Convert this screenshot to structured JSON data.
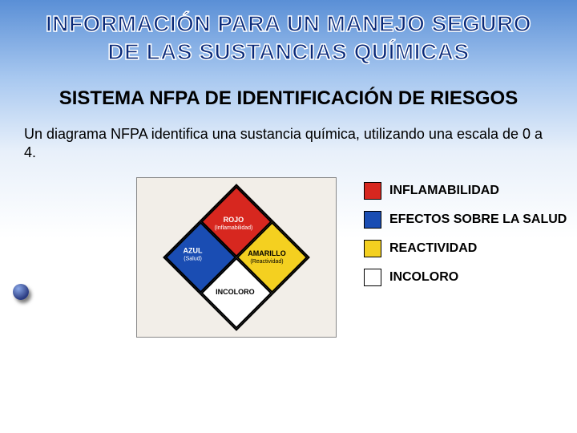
{
  "title": {
    "line1": "INFORMACIÓN PARA UN MANEJO SEGURO",
    "line2": "DE LAS SUSTANCIAS QUÍMICAS"
  },
  "subtitle": "SISTEMA NFPA DE IDENTIFICACIÓN DE RIESGOS",
  "description": "Un diagrama NFPA identifica una sustancia química, utilizando una escala de 0 a 4.",
  "diamond": {
    "top": {
      "label": "ROJO",
      "sublabel": "(Inflamabilidad)",
      "color": "#d7271f"
    },
    "right": {
      "label": "AMARILLO",
      "sublabel": "(Reactividad)",
      "color": "#f4d020"
    },
    "bottom": {
      "label": "INCOLORO",
      "sublabel": "",
      "color": "#ffffff"
    },
    "left": {
      "label": "AZUL",
      "sublabel": "(Salud)",
      "color": "#1a4db3"
    }
  },
  "legend": [
    {
      "color": "#d7271f",
      "text": "INFLAMABILIDAD"
    },
    {
      "color": "#1a4db3",
      "text": "EFECTOS SOBRE LA SALUD"
    },
    {
      "color": "#f4d020",
      "text": "REACTIVIDAD"
    },
    {
      "color": "#ffffff",
      "text": "INCOLORO"
    }
  ],
  "background": {
    "gradient_top": "#5a8fd6",
    "gradient_mid": "#a8c8f0",
    "gradient_bottom": "#ffffff"
  }
}
